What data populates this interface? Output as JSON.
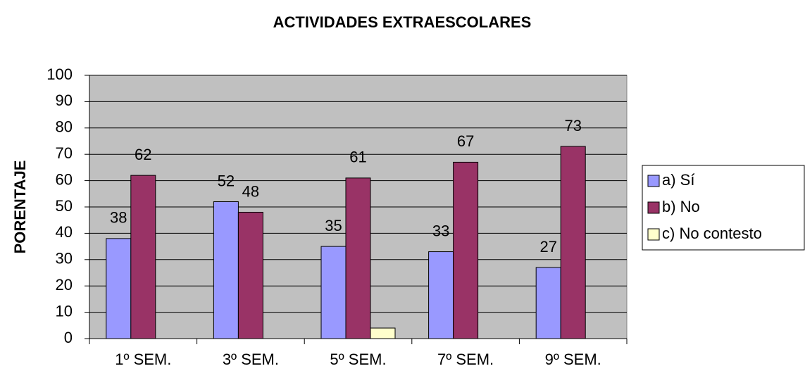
{
  "chart_data": {
    "type": "bar",
    "title": "ACTIVIDADES EXTRAESCOLARES",
    "y_label": "PORENTAJE",
    "categories": [
      "1º SEM.",
      "3º SEM.",
      "5º SEM.",
      "7º SEM.",
      "9º SEM."
    ],
    "series": [
      {
        "name": "a) Sí",
        "color": "#9999ff",
        "values": [
          38,
          52,
          35,
          33,
          27
        ],
        "data_labels": true
      },
      {
        "name": "b) No",
        "color": "#993366",
        "values": [
          62,
          48,
          61,
          67,
          73
        ],
        "data_labels": true
      },
      {
        "name": "c) No contesto",
        "color": "#ffffcc",
        "values": [
          0,
          0,
          4,
          0,
          0
        ],
        "data_labels": false
      }
    ],
    "ylim": [
      0,
      100
    ],
    "yticks": [
      0,
      10,
      20,
      30,
      40,
      50,
      60,
      70,
      80,
      90,
      100
    ],
    "grid": true,
    "plot_background": "#c0c0c0",
    "legend": "right"
  }
}
